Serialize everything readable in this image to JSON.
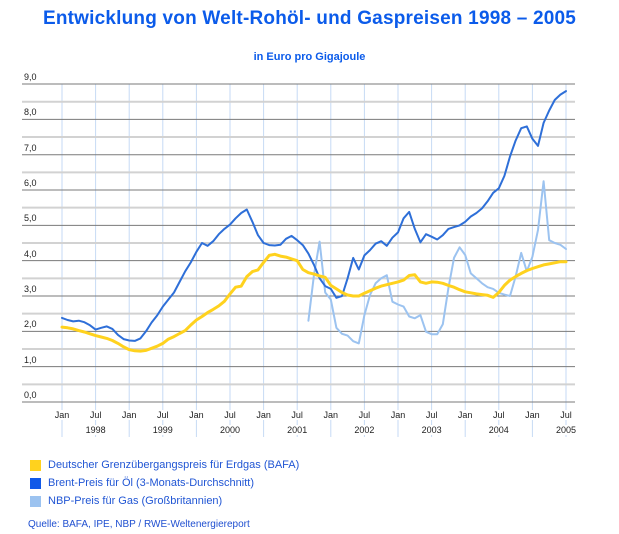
{
  "title": "Entwicklung von Welt-Rohöl- und Gaspreisen 1998 – 2005",
  "subtitle": "in Euro pro Gigajoule",
  "source": "Quelle: BAFA, IPE, NBP / RWE-Weltenergiereport",
  "colors": {
    "title_text": "#0b5bea",
    "legend_text": "#2156d4",
    "source_text": "#1f4fd0",
    "axis_text": "#222222",
    "grid_major": "#7a7a7a",
    "grid_half": "#d2d2d2",
    "grid_vertical": "#c6daf4",
    "bafa_yellow": "#ffd21e",
    "brent_blue": "#2e6fd8",
    "nbp_lightblue": "#9cc3f0"
  },
  "legend": [
    {
      "label": "Deutscher Grenzübergangspreis für Erdgas (BAFA)",
      "color": "#ffd21e"
    },
    {
      "label": "Brent-Preis für Öl (3-Monats-Durchschnitt)",
      "color": "#1159e8"
    },
    {
      "label": "NBP-Preis für Gas (Großbritannien)",
      "color": "#9cc3f0"
    }
  ],
  "chart_data": {
    "type": "line",
    "title": "Entwicklung von Welt-Rohöl- und Gaspreisen 1998 – 2005",
    "subtitle": "in Euro pro Gigajoule",
    "ylabel": "Euro pro Gigajoule",
    "ylim": [
      0.0,
      9.0
    ],
    "ytick_step_labels": 1.0,
    "grid_minor_step": 0.5,
    "ytick_labels": [
      "0,0",
      "1,0",
      "2,0",
      "3,0",
      "4,0",
      "5,0",
      "6,0",
      "7,0",
      "8,0",
      "9,0"
    ],
    "x_start": "Jan 1998",
    "x_end": "Jul 2005",
    "x_tick_interval_months": 6,
    "xticks": [
      {
        "label": "Jan",
        "year": ""
      },
      {
        "label": "Jul",
        "year": "1998"
      },
      {
        "label": "Jan",
        "year": ""
      },
      {
        "label": "Jul",
        "year": "1999"
      },
      {
        "label": "Jan",
        "year": ""
      },
      {
        "label": "Jul",
        "year": "2000"
      },
      {
        "label": "Jan",
        "year": ""
      },
      {
        "label": "Jul",
        "year": "2001"
      },
      {
        "label": "Jan",
        "year": ""
      },
      {
        "label": "Jul",
        "year": "2002"
      },
      {
        "label": "Jan",
        "year": ""
      },
      {
        "label": "Jul",
        "year": "2003"
      },
      {
        "label": "Jan",
        "year": ""
      },
      {
        "label": "Jul",
        "year": "2004"
      },
      {
        "label": "Jan",
        "year": ""
      },
      {
        "label": "Jul",
        "year": "2005"
      }
    ],
    "series": [
      {
        "name": "NBP-Preis für Gas (Großbritannien)",
        "color": "#9cc3f0",
        "width": 2,
        "start_month_index": 44,
        "start_month": "Sep 2001",
        "values": [
          2.3,
          3.6,
          4.54,
          3.1,
          2.9,
          2.1,
          1.93,
          1.88,
          1.72,
          1.66,
          2.46,
          3.03,
          3.36,
          3.5,
          3.59,
          2.84,
          2.76,
          2.7,
          2.42,
          2.37,
          2.46,
          1.99,
          1.92,
          1.92,
          2.2,
          3.22,
          4.08,
          4.38,
          4.16,
          3.64,
          3.5,
          3.36,
          3.25,
          3.2,
          3.09,
          3.04,
          3.0,
          3.55,
          4.22,
          3.7,
          4.11,
          4.87,
          6.25,
          4.58,
          4.5,
          4.45,
          4.33
        ]
      },
      {
        "name": "Brent-Preis für Öl (3-Monats-Durchschnitt)",
        "color": "#2e6fd8",
        "width": 2,
        "start_month_index": 0,
        "start_month": "Jan 1998",
        "values": [
          2.38,
          2.32,
          2.28,
          2.3,
          2.26,
          2.17,
          2.05,
          2.1,
          2.14,
          2.07,
          1.9,
          1.78,
          1.74,
          1.73,
          1.8,
          2.0,
          2.25,
          2.45,
          2.7,
          2.9,
          3.1,
          3.4,
          3.7,
          3.95,
          4.25,
          4.5,
          4.42,
          4.55,
          4.75,
          4.9,
          5.02,
          5.2,
          5.35,
          5.45,
          5.1,
          4.72,
          4.5,
          4.44,
          4.43,
          4.45,
          4.62,
          4.7,
          4.58,
          4.44,
          4.2,
          3.88,
          3.5,
          3.28,
          3.2,
          2.95,
          3.0,
          3.5,
          4.08,
          3.75,
          4.15,
          4.3,
          4.48,
          4.55,
          4.42,
          4.65,
          4.8,
          5.2,
          5.38,
          4.9,
          4.52,
          4.75,
          4.68,
          4.6,
          4.72,
          4.9,
          4.95,
          5.0,
          5.1,
          5.25,
          5.35,
          5.48,
          5.68,
          5.92,
          6.05,
          6.4,
          6.95,
          7.4,
          7.75,
          7.8,
          7.45,
          7.25,
          7.9,
          8.25,
          8.55,
          8.7,
          8.8
        ]
      },
      {
        "name": "Deutscher Grenzübergangspreis für Erdgas (BAFA)",
        "color": "#ffd21e",
        "width": 3,
        "start_month_index": 0,
        "start_month": "Jan 1998",
        "values": [
          2.12,
          2.1,
          2.07,
          2.02,
          1.98,
          1.93,
          1.88,
          1.84,
          1.8,
          1.74,
          1.66,
          1.56,
          1.48,
          1.45,
          1.44,
          1.46,
          1.52,
          1.58,
          1.66,
          1.78,
          1.85,
          1.94,
          2.02,
          2.18,
          2.32,
          2.42,
          2.53,
          2.62,
          2.72,
          2.85,
          3.06,
          3.25,
          3.28,
          3.55,
          3.69,
          3.74,
          3.95,
          4.15,
          4.18,
          4.13,
          4.1,
          4.05,
          4.0,
          3.75,
          3.66,
          3.62,
          3.57,
          3.53,
          3.3,
          3.2,
          3.1,
          3.03,
          3.0,
          3.0,
          3.08,
          3.15,
          3.22,
          3.28,
          3.32,
          3.36,
          3.4,
          3.45,
          3.58,
          3.6,
          3.4,
          3.36,
          3.4,
          3.39,
          3.36,
          3.3,
          3.25,
          3.18,
          3.12,
          3.09,
          3.06,
          3.04,
          3.02,
          2.96,
          3.1,
          3.3,
          3.45,
          3.55,
          3.64,
          3.72,
          3.78,
          3.83,
          3.88,
          3.91,
          3.94,
          3.97,
          3.97
        ]
      }
    ],
    "legend_position": "bottom-left",
    "grid": true
  }
}
